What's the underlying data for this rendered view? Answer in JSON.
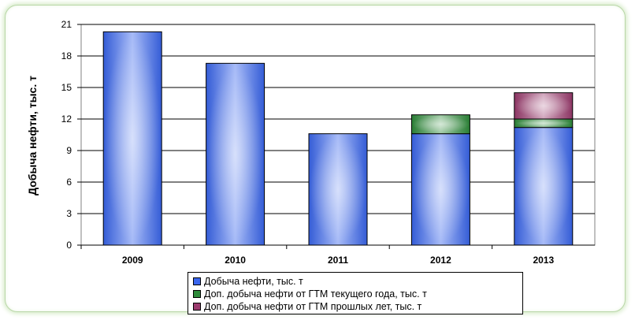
{
  "chart_data": {
    "type": "bar",
    "stacked": true,
    "categories": [
      "2009",
      "2010",
      "2011",
      "2012",
      "2013"
    ],
    "series": [
      {
        "name": "Добыча нефти, тыс. т",
        "color": "#3a66ee",
        "values": [
          20.3,
          17.3,
          10.6,
          10.6,
          11.2
        ]
      },
      {
        "name": "Доп. добыча нефти от ГТМ текущего года, тыс. т",
        "color": "#2e8b3a",
        "values": [
          0,
          0,
          0,
          1.8,
          0.8
        ]
      },
      {
        "name": "Доп. добыча нефти от ГТМ прошлых лет, тыс. т",
        "color": "#9c3b6e",
        "values": [
          0,
          0,
          0,
          0,
          2.5
        ]
      }
    ],
    "yticks": [
      "0",
      "3",
      "6",
      "9",
      "12",
      "15",
      "18",
      "21"
    ],
    "ylim": [
      0,
      21
    ],
    "ylabel": "Добыча нефти, тыс. т",
    "xlabel": "",
    "grid": true,
    "legend_position": "bottom"
  }
}
